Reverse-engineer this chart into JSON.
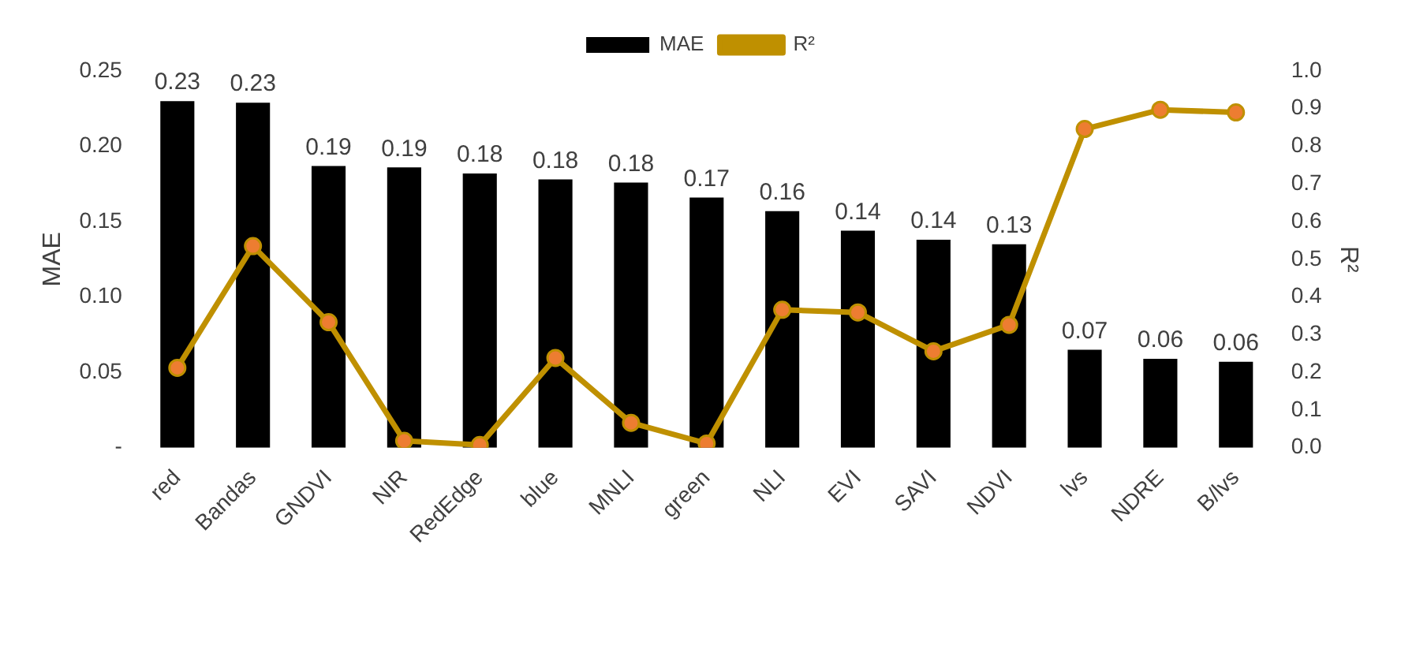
{
  "chart_data": {
    "type": "bar",
    "ylabel": "MAE",
    "y2label": "R²",
    "categories": [
      "red",
      "Bandas",
      "GNDVI",
      "NIR",
      "RedEdge",
      "blue",
      "MNLI",
      "green",
      "NLI",
      "EVI",
      "SAVI",
      "NDVI",
      "lvs",
      "NDRE",
      "B/lvs"
    ],
    "series": [
      {
        "name": "MAE",
        "color": "#000000",
        "values": [
          0.23,
          0.229,
          0.187,
          0.186,
          0.182,
          0.178,
          0.176,
          0.166,
          0.157,
          0.144,
          0.138,
          0.135,
          0.065,
          0.059,
          0.057
        ],
        "value_labels": [
          "0.23",
          "0.23",
          "0.19",
          "0.19",
          "0.18",
          "0.18",
          "0.18",
          "0.17",
          "0.16",
          "0.14",
          "0.14",
          "0.13",
          "0.07",
          "0.06",
          "0.06"
        ]
      },
      {
        "name": "R²",
        "type": "line",
        "axis": "y2",
        "color": "#bf9000",
        "marker": "circle",
        "values": [
          0.212,
          0.535,
          0.333,
          0.018,
          0.007,
          0.238,
          0.066,
          0.011,
          0.366,
          0.359,
          0.256,
          0.326,
          0.846,
          0.897,
          0.89
        ]
      }
    ],
    "ylim": [
      0,
      0.25
    ],
    "yticks": [
      {
        "value": 0,
        "label": "-"
      },
      {
        "value": 0.05,
        "label": "0.05"
      },
      {
        "value": 0.1,
        "label": "0.10"
      },
      {
        "value": 0.15,
        "label": "0.15"
      },
      {
        "value": 0.2,
        "label": "0.20"
      },
      {
        "value": 0.25,
        "label": "0.25"
      }
    ],
    "y2lim": [
      0,
      1
    ],
    "y2ticks": [
      {
        "value": 0,
        "label": "0.0"
      },
      {
        "value": 0.1,
        "label": "0.1"
      },
      {
        "value": 0.2,
        "label": "0.2"
      },
      {
        "value": 0.3,
        "label": "0.3"
      },
      {
        "value": 0.4,
        "label": "0.4"
      },
      {
        "value": 0.5,
        "label": "0.5"
      },
      {
        "value": 0.6,
        "label": "0.6"
      },
      {
        "value": 0.7,
        "label": "0.7"
      },
      {
        "value": 0.8,
        "label": "0.8"
      },
      {
        "value": 0.9,
        "label": "0.9"
      },
      {
        "value": 1,
        "label": "1.0"
      }
    ],
    "grid": false,
    "legend": "top"
  }
}
